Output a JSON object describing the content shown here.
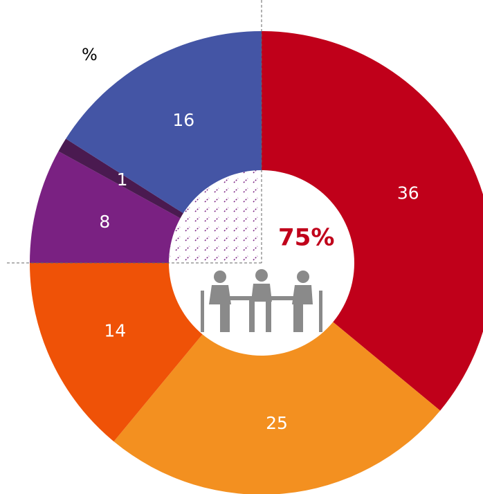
{
  "chart_data": {
    "type": "donut",
    "unit": "%",
    "center_label": "75%",
    "values": [
      36,
      25,
      14,
      8,
      1,
      16
    ],
    "colors": [
      "#c0001a",
      "#f39020",
      "#ef5207",
      "#7a2182",
      "#4a1a50",
      "#4455a5"
    ]
  }
}
